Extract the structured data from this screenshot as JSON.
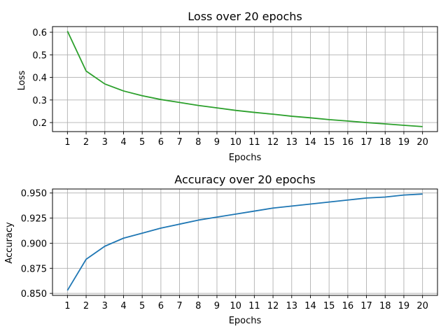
{
  "chart_data": [
    {
      "type": "line",
      "title": "Loss over 20 epochs",
      "xlabel": "Epochs",
      "ylabel": "Loss",
      "x": [
        1,
        2,
        3,
        4,
        5,
        6,
        7,
        8,
        9,
        10,
        11,
        12,
        13,
        14,
        15,
        16,
        17,
        18,
        19,
        20
      ],
      "series": [
        {
          "values": [
            0.605,
            0.428,
            0.371,
            0.34,
            0.319,
            0.302,
            0.289,
            0.276,
            0.265,
            0.254,
            0.245,
            0.237,
            0.228,
            0.221,
            0.213,
            0.207,
            0.2,
            0.194,
            0.188,
            0.182
          ],
          "color": "#2ca02c"
        }
      ],
      "xlim": [
        0.2,
        20.8
      ],
      "ylim": [
        0.16,
        0.625
      ],
      "yticks": [
        0.2,
        0.3,
        0.4,
        0.5,
        0.6
      ],
      "ytick_labels": [
        "0.2",
        "0.3",
        "0.4",
        "0.5",
        "0.6"
      ],
      "grid": true,
      "legend": "none"
    },
    {
      "type": "line",
      "title": "Accuracy over 20 epochs",
      "xlabel": "Epochs",
      "ylabel": "Accuracy",
      "x": [
        1,
        2,
        3,
        4,
        5,
        6,
        7,
        8,
        9,
        10,
        11,
        12,
        13,
        14,
        15,
        16,
        17,
        18,
        19,
        20
      ],
      "series": [
        {
          "values": [
            0.853,
            0.884,
            0.897,
            0.905,
            0.91,
            0.915,
            0.919,
            0.923,
            0.926,
            0.929,
            0.932,
            0.935,
            0.937,
            0.939,
            0.941,
            0.943,
            0.945,
            0.946,
            0.948,
            0.949
          ],
          "color": "#1f77b4"
        }
      ],
      "xlim": [
        0.2,
        20.8
      ],
      "ylim": [
        0.848,
        0.954
      ],
      "yticks": [
        0.85,
        0.875,
        0.9,
        0.925,
        0.95
      ],
      "ytick_labels": [
        "0.850",
        "0.875",
        "0.900",
        "0.925",
        "0.950"
      ],
      "grid": true,
      "legend": "none"
    }
  ]
}
